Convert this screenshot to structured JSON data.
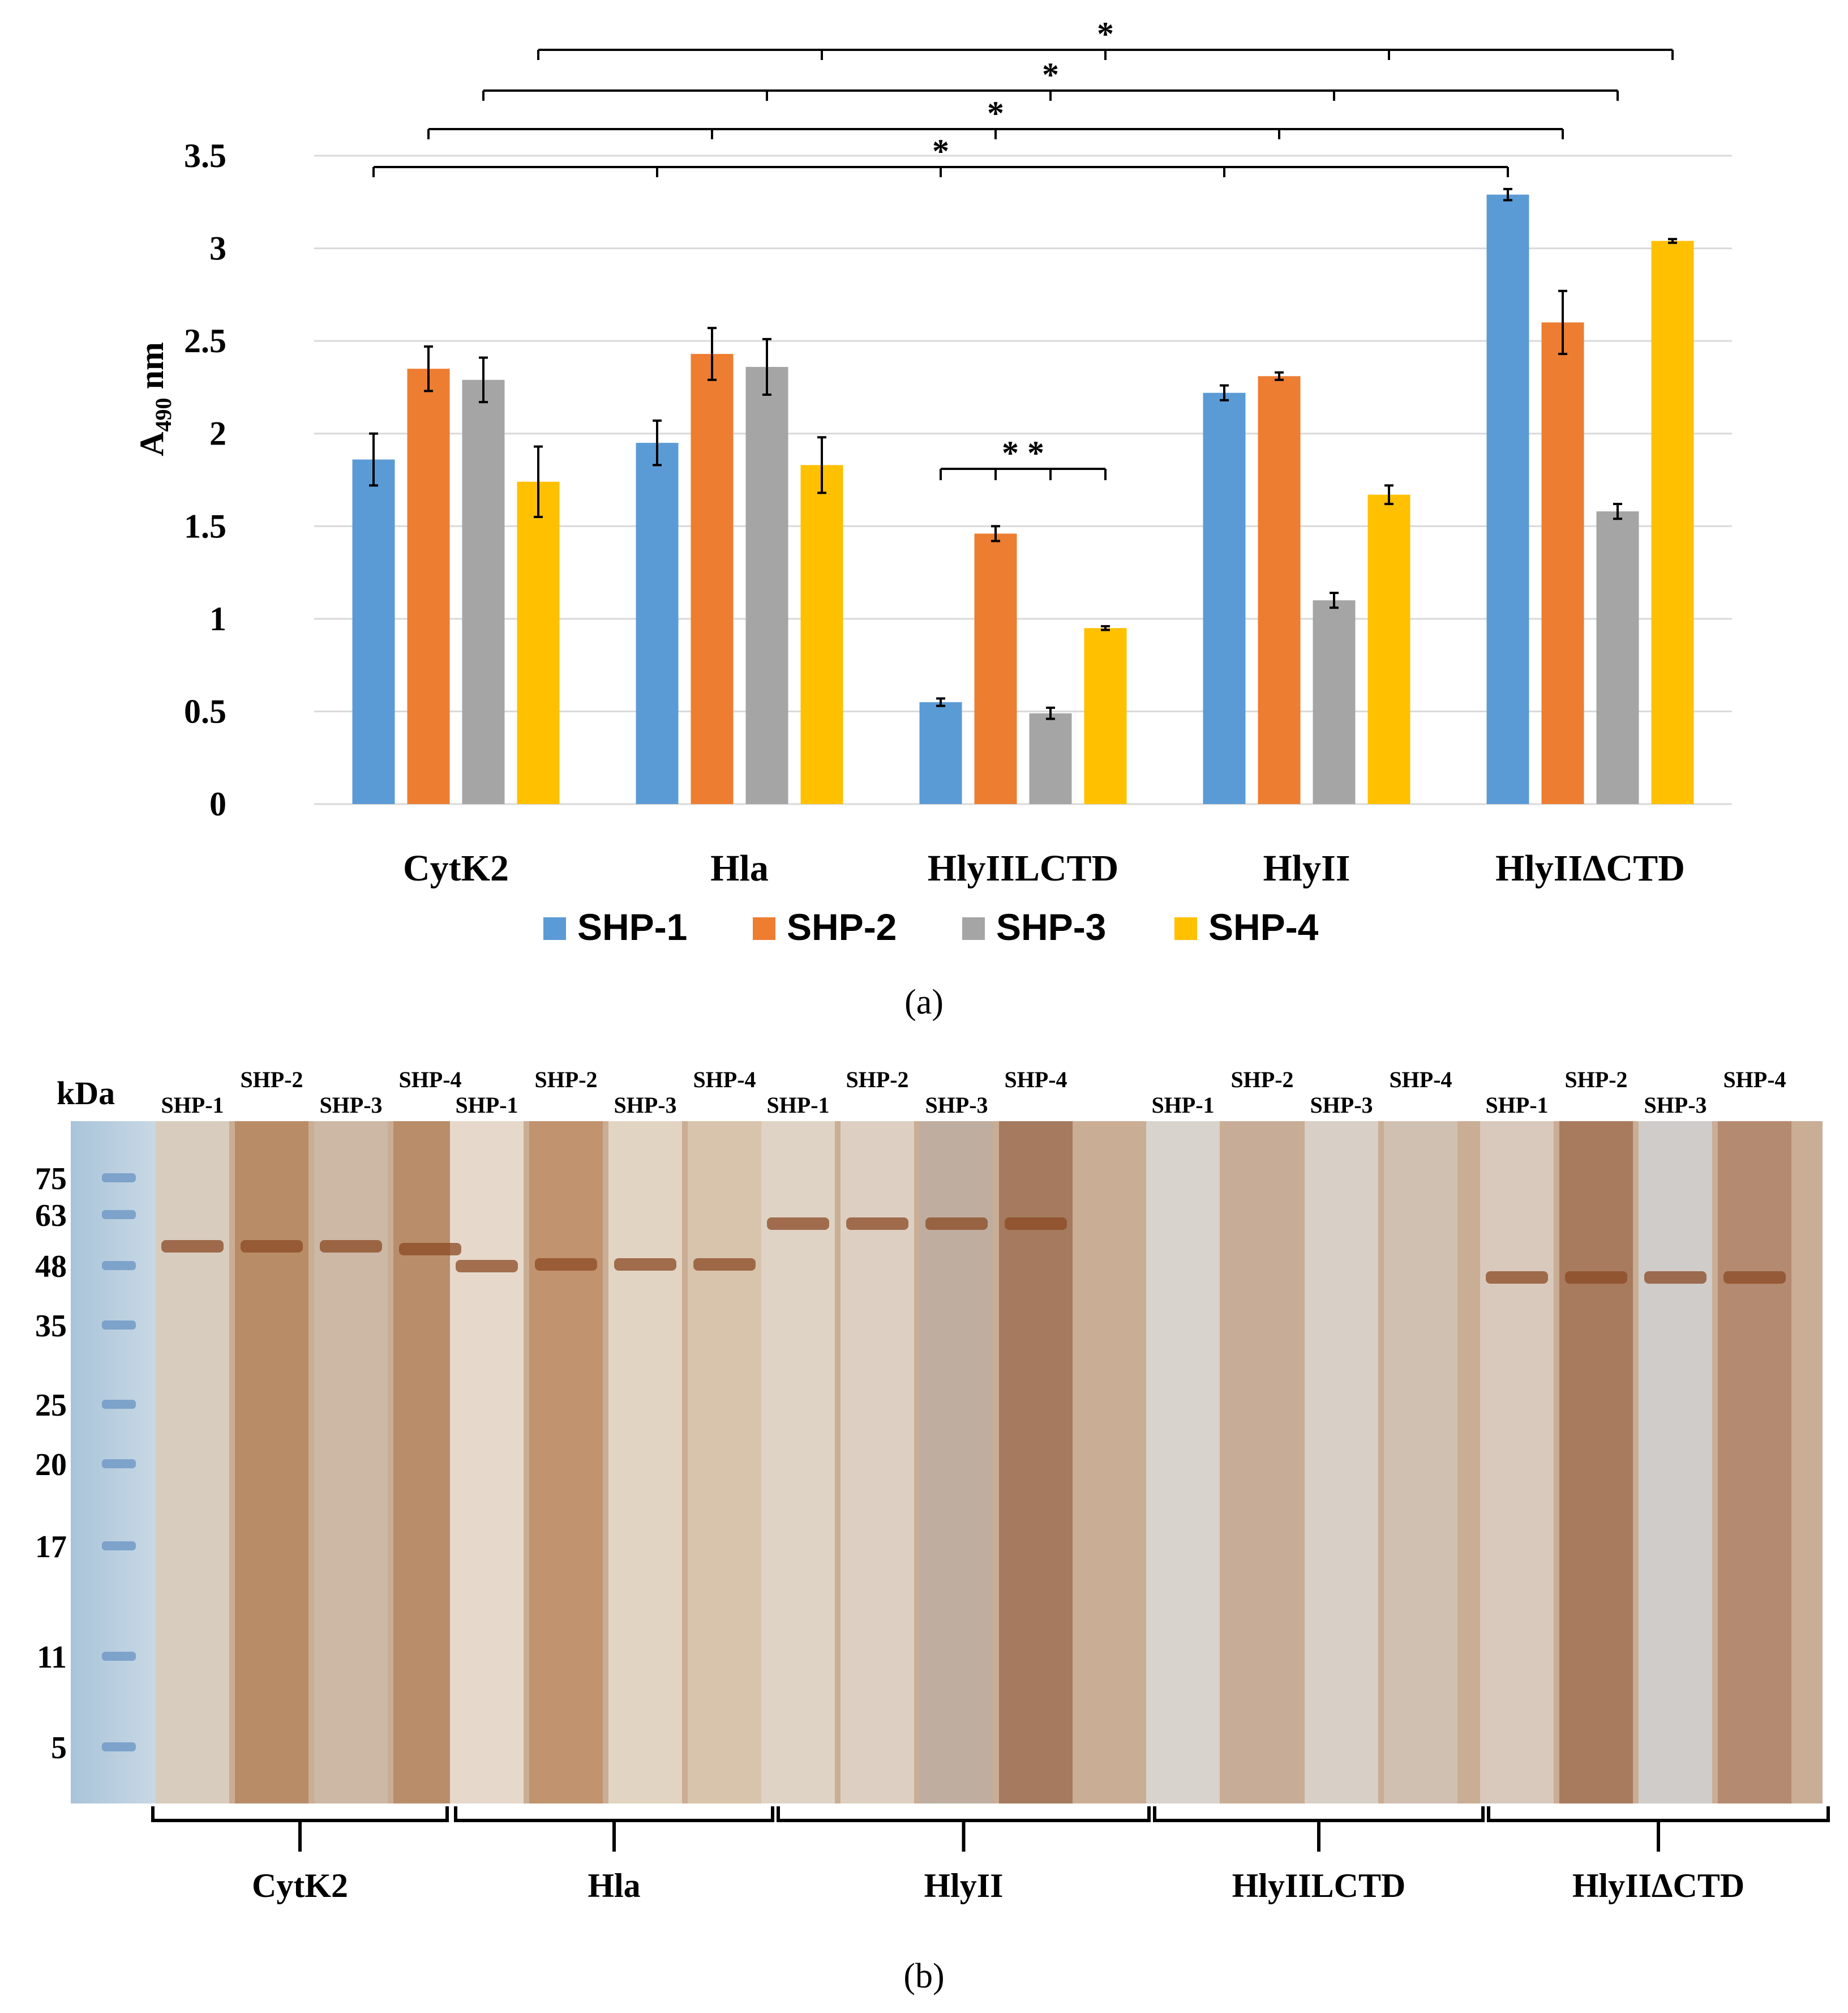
{
  "chart_data": {
    "type": "bar",
    "ylabel_main": "A",
    "ylabel_sub": "490",
    "ylabel_unit": " nm",
    "ylim": [
      0,
      3.5
    ],
    "yticks": [
      "0",
      "0.5",
      "1",
      "1.5",
      "2",
      "2.5",
      "3",
      "3.5"
    ],
    "categories": [
      "CytK2",
      "Hla",
      "HlyIILCTD",
      "HlyII",
      "HlyIIΔCTD"
    ],
    "series": [
      {
        "name": "SHP-1",
        "color": "#5b9bd5",
        "values": [
          1.86,
          1.95,
          0.55,
          2.22,
          3.29
        ],
        "errors": [
          0.14,
          0.12,
          0.02,
          0.04,
          0.03
        ]
      },
      {
        "name": "SHP-2",
        "color": "#ed7d31",
        "values": [
          2.35,
          2.43,
          1.46,
          2.31,
          2.6
        ],
        "errors": [
          0.12,
          0.14,
          0.04,
          0.02,
          0.17
        ]
      },
      {
        "name": "SHP-3",
        "color": "#a5a5a5",
        "values": [
          2.29,
          2.36,
          0.49,
          1.1,
          1.58
        ],
        "errors": [
          0.12,
          0.15,
          0.03,
          0.04,
          0.04
        ]
      },
      {
        "name": "SHP-4",
        "color": "#ffc000",
        "values": [
          1.74,
          1.83,
          0.95,
          1.67,
          3.04
        ],
        "errors": [
          0.19,
          0.15,
          0.01,
          0.05,
          0.01
        ]
      }
    ],
    "significance": {
      "single": "*",
      "double": "* *"
    },
    "legend": [
      "SHP-1",
      "SHP-2",
      "SHP-3",
      "SHP-4"
    ]
  },
  "captions": {
    "a": "(a)",
    "b": "(b)"
  },
  "blot": {
    "kda_label": "kDa",
    "markers": [
      "75",
      "63",
      "48",
      "35",
      "25",
      "20",
      "17",
      "11",
      "5"
    ],
    "lane_labels": [
      "SHP-1",
      "SHP-2",
      "SHP-3",
      "SHP-4"
    ],
    "groups": [
      "CytK2",
      "Hla",
      "HlyII",
      "HlyIILCTD",
      "HlyIIΔCTD"
    ]
  }
}
